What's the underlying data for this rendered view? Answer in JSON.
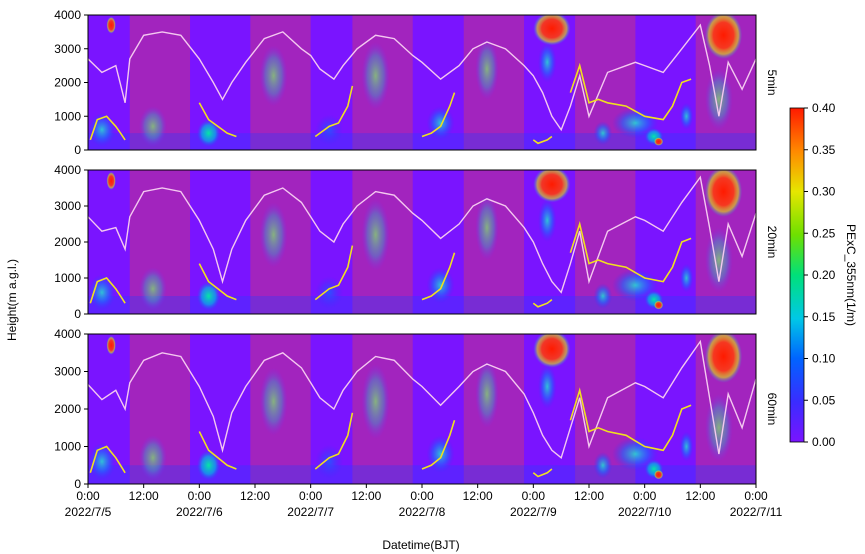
{
  "chart_data": {
    "type": "heatmap",
    "ylabel": "Height(m a.g.l.)",
    "xlabel": "Datetime(BJT)",
    "colorbar_label": "PExC_355nm(1/m)",
    "ylim": [
      0,
      4000
    ],
    "y_ticks": [
      0,
      1000,
      2000,
      3000,
      4000
    ],
    "x_hours_range": [
      0,
      144
    ],
    "x_tick_hours": [
      0,
      12,
      24,
      36,
      48,
      60,
      72,
      84,
      96,
      108,
      120,
      132,
      144
    ],
    "x_tick_labels": [
      "0:00",
      "12:00",
      "0:00",
      "12:00",
      "0:00",
      "12:00",
      "0:00",
      "12:00",
      "0:00",
      "12:00",
      "0:00",
      "12:00",
      "0:00"
    ],
    "x_date_labels": [
      {
        "hour": 0,
        "text": "2022/7/5"
      },
      {
        "hour": 24,
        "text": "2022/7/6"
      },
      {
        "hour": 48,
        "text": "2022/7/7"
      },
      {
        "hour": 72,
        "text": "2022/7/8"
      },
      {
        "hour": 96,
        "text": "2022/7/9"
      },
      {
        "hour": 120,
        "text": "2022/7/10"
      },
      {
        "hour": 144,
        "text": "2022/7/11"
      }
    ],
    "colorbar": {
      "min": 0.0,
      "max": 0.4,
      "ticks": [
        "0.00",
        "0.05",
        "0.10",
        "0.15",
        "0.20",
        "0.25",
        "0.30",
        "0.35",
        "0.40"
      ]
    },
    "day_shading_hours": [
      [
        9,
        22
      ],
      [
        35,
        48
      ],
      [
        57,
        70
      ],
      [
        81,
        94
      ],
      [
        105,
        118
      ],
      [
        131,
        144
      ]
    ],
    "panels": [
      {
        "label": "5min",
        "boundary_layer_height": [
          [
            0,
            2700
          ],
          [
            3,
            2300
          ],
          [
            6,
            2500
          ],
          [
            8,
            1400
          ],
          [
            9,
            2700
          ],
          [
            12,
            3400
          ],
          [
            16,
            3500
          ],
          [
            20,
            3400
          ],
          [
            24,
            2700
          ],
          [
            27,
            2000
          ],
          [
            29,
            1500
          ],
          [
            31,
            2000
          ],
          [
            34,
            2600
          ],
          [
            38,
            3300
          ],
          [
            42,
            3500
          ],
          [
            46,
            3000
          ],
          [
            48,
            2800
          ],
          [
            50,
            2400
          ],
          [
            53,
            2100
          ],
          [
            55,
            2500
          ],
          [
            58,
            3000
          ],
          [
            62,
            3400
          ],
          [
            66,
            3300
          ],
          [
            70,
            2800
          ],
          [
            72,
            2600
          ],
          [
            76,
            2100
          ],
          [
            80,
            2500
          ],
          [
            83,
            3000
          ],
          [
            86,
            3200
          ],
          [
            90,
            3000
          ],
          [
            94,
            2500
          ],
          [
            96,
            2200
          ],
          [
            98,
            1700
          ],
          [
            100,
            1000
          ],
          [
            102,
            600
          ],
          [
            104,
            1300
          ],
          [
            106,
            2200
          ],
          [
            108,
            1000
          ],
          [
            112,
            2300
          ],
          [
            118,
            2600
          ],
          [
            120,
            2500
          ],
          [
            124,
            2300
          ],
          [
            128,
            3000
          ],
          [
            132,
            3700
          ],
          [
            134,
            2500
          ],
          [
            136,
            1000
          ],
          [
            138,
            2600
          ],
          [
            141,
            1800
          ],
          [
            144,
            2700
          ]
        ]
      },
      {
        "label": "20min",
        "boundary_layer_height": [
          [
            0,
            2700
          ],
          [
            3,
            2300
          ],
          [
            6,
            2400
          ],
          [
            8,
            1800
          ],
          [
            9,
            2700
          ],
          [
            12,
            3400
          ],
          [
            16,
            3500
          ],
          [
            20,
            3400
          ],
          [
            24,
            2600
          ],
          [
            27,
            1800
          ],
          [
            29,
            900
          ],
          [
            31,
            1800
          ],
          [
            34,
            2600
          ],
          [
            38,
            3300
          ],
          [
            42,
            3500
          ],
          [
            46,
            3100
          ],
          [
            48,
            2700
          ],
          [
            50,
            2300
          ],
          [
            53,
            2000
          ],
          [
            55,
            2500
          ],
          [
            58,
            3000
          ],
          [
            62,
            3400
          ],
          [
            66,
            3300
          ],
          [
            70,
            2800
          ],
          [
            72,
            2600
          ],
          [
            76,
            2100
          ],
          [
            80,
            2500
          ],
          [
            83,
            3000
          ],
          [
            86,
            3200
          ],
          [
            90,
            3000
          ],
          [
            94,
            2400
          ],
          [
            96,
            2000
          ],
          [
            98,
            1400
          ],
          [
            100,
            900
          ],
          [
            102,
            600
          ],
          [
            104,
            1400
          ],
          [
            106,
            2300
          ],
          [
            108,
            900
          ],
          [
            112,
            2300
          ],
          [
            118,
            2700
          ],
          [
            120,
            2600
          ],
          [
            124,
            2300
          ],
          [
            128,
            3100
          ],
          [
            132,
            3800
          ],
          [
            134,
            2400
          ],
          [
            136,
            900
          ],
          [
            138,
            2500
          ],
          [
            141,
            1600
          ],
          [
            144,
            2800
          ]
        ]
      },
      {
        "label": "60min",
        "boundary_layer_height": [
          [
            0,
            2650
          ],
          [
            3,
            2250
          ],
          [
            6,
            2500
          ],
          [
            8,
            2000
          ],
          [
            9,
            2700
          ],
          [
            12,
            3300
          ],
          [
            16,
            3500
          ],
          [
            20,
            3400
          ],
          [
            24,
            2600
          ],
          [
            27,
            1800
          ],
          [
            29,
            900
          ],
          [
            31,
            1900
          ],
          [
            34,
            2600
          ],
          [
            38,
            3300
          ],
          [
            42,
            3500
          ],
          [
            46,
            3100
          ],
          [
            48,
            2700
          ],
          [
            50,
            2300
          ],
          [
            53,
            2000
          ],
          [
            55,
            2500
          ],
          [
            58,
            3000
          ],
          [
            62,
            3400
          ],
          [
            66,
            3300
          ],
          [
            70,
            2800
          ],
          [
            72,
            2600
          ],
          [
            76,
            2100
          ],
          [
            80,
            2600
          ],
          [
            83,
            3000
          ],
          [
            86,
            3200
          ],
          [
            90,
            3000
          ],
          [
            94,
            2400
          ],
          [
            96,
            1900
          ],
          [
            98,
            1300
          ],
          [
            100,
            900
          ],
          [
            102,
            700
          ],
          [
            104,
            1500
          ],
          [
            106,
            2300
          ],
          [
            108,
            1000
          ],
          [
            112,
            2300
          ],
          [
            118,
            2700
          ],
          [
            120,
            2600
          ],
          [
            124,
            2300
          ],
          [
            128,
            3100
          ],
          [
            132,
            3800
          ],
          [
            134,
            2300
          ],
          [
            136,
            800
          ],
          [
            138,
            2400
          ],
          [
            141,
            1500
          ],
          [
            144,
            2800
          ]
        ]
      }
    ],
    "mixing_layer_height": [
      {
        "hour_range": [
          0,
          8
        ],
        "points": [
          [
            0.5,
            300
          ],
          [
            2,
            900
          ],
          [
            4,
            1000
          ],
          [
            6,
            700
          ],
          [
            7,
            500
          ],
          [
            8,
            300
          ]
        ]
      },
      {
        "hour_range": [
          24,
          34
        ],
        "points": [
          [
            24,
            1400
          ],
          [
            26,
            900
          ],
          [
            28,
            700
          ],
          [
            30,
            500
          ],
          [
            32,
            400
          ]
        ]
      },
      {
        "hour_range": [
          48,
          58
        ],
        "points": [
          [
            49,
            400
          ],
          [
            52,
            700
          ],
          [
            54,
            800
          ],
          [
            56,
            1300
          ],
          [
            57,
            1900
          ]
        ]
      },
      {
        "hour_range": [
          72,
          80
        ],
        "points": [
          [
            72,
            400
          ],
          [
            74,
            500
          ],
          [
            76,
            700
          ],
          [
            78,
            1300
          ],
          [
            79,
            1700
          ]
        ]
      },
      {
        "hour_range": [
          96,
          106
        ],
        "points": [
          [
            96,
            300
          ],
          [
            97,
            200
          ],
          [
            99,
            300
          ],
          [
            100,
            400
          ]
        ]
      },
      {
        "hour_range": [
          104,
          132
        ],
        "points": [
          [
            104,
            1700
          ],
          [
            106,
            2500
          ],
          [
            108,
            1400
          ],
          [
            110,
            1500
          ],
          [
            112,
            1400
          ],
          [
            116,
            1300
          ],
          [
            120,
            1000
          ],
          [
            124,
            900
          ],
          [
            126,
            1300
          ],
          [
            128,
            2000
          ],
          [
            130,
            2100
          ]
        ]
      }
    ]
  }
}
